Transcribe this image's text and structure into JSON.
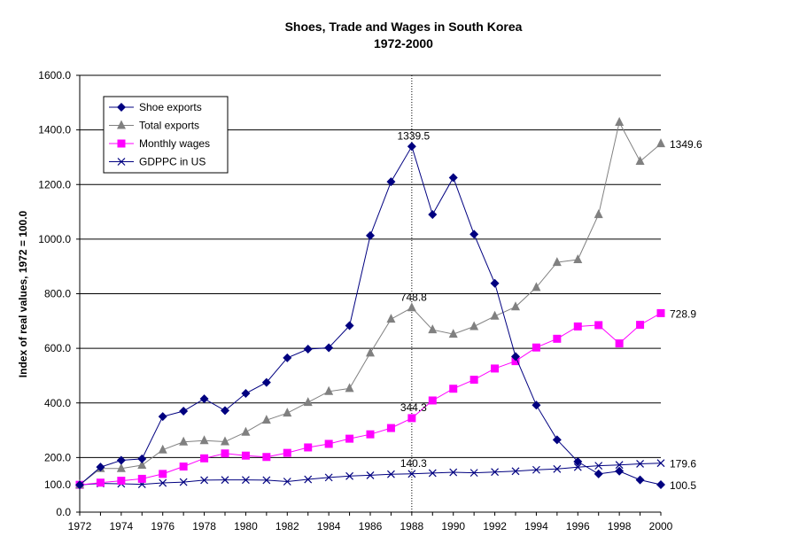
{
  "colors": {
    "shoe_exports": "#000080",
    "total_exports": "#808080",
    "monthly_wages": "#ff00ff",
    "gdppc_us": "#000080",
    "gridline": "#000000"
  },
  "chart_data": {
    "type": "line",
    "title": "Shoes, Trade and Wages in South Korea",
    "subtitle": "1972-2000",
    "ylabel": "Index of real values, 1972 = 100.0",
    "xlabel": "",
    "ylim": [
      0,
      1600
    ],
    "xlim": [
      1972,
      2000
    ],
    "y_ticks": [
      "0.0",
      "100.0",
      "200.0",
      "400.0",
      "600.0",
      "800.0",
      "1000.0",
      "1200.0",
      "1400.0",
      "1600.0"
    ],
    "x_ticks": [
      "1972",
      "1974",
      "1976",
      "1978",
      "1980",
      "1982",
      "1984",
      "1986",
      "1988",
      "1990",
      "1992",
      "1994",
      "1996",
      "1998",
      "2000"
    ],
    "grid": "horizontal",
    "legend_position": "top-left",
    "reference_line_year": 1988,
    "x": [
      1972,
      1973,
      1974,
      1975,
      1976,
      1977,
      1978,
      1979,
      1980,
      1981,
      1982,
      1983,
      1984,
      1985,
      1986,
      1987,
      1988,
      1989,
      1990,
      1991,
      1992,
      1993,
      1994,
      1995,
      1996,
      1997,
      1998,
      1999,
      2000
    ],
    "series": [
      {
        "name": "Shoe exports",
        "key": "shoe_exports",
        "marker": "diamond",
        "values": [
          100,
          165,
          190,
          195,
          350,
          370,
          415,
          372,
          435,
          475,
          565,
          597,
          602,
          683,
          1013,
          1210,
          1339.5,
          1090,
          1225,
          1018,
          838,
          570,
          392,
          265,
          185,
          140,
          150,
          118,
          100.5
        ]
      },
      {
        "name": "Total exports",
        "key": "total_exports",
        "marker": "triangle",
        "values": [
          100,
          160,
          160,
          172,
          228,
          257,
          262,
          258,
          293,
          337,
          363,
          402,
          442,
          453,
          583,
          707,
          748.8,
          668,
          652,
          680,
          718,
          752,
          823,
          915,
          925,
          1090,
          1428,
          1285,
          1349.6
        ]
      },
      {
        "name": "Monthly wages",
        "key": "monthly_wages",
        "marker": "square",
        "values": [
          100,
          108,
          115,
          122,
          140,
          167,
          197,
          215,
          207,
          202,
          217,
          237,
          250,
          269,
          285,
          308,
          344.3,
          409,
          452,
          485,
          526,
          553,
          603,
          635,
          680,
          685,
          618,
          686,
          728.9
        ]
      },
      {
        "name": "GDPPC in US",
        "key": "gdppc_us",
        "marker": "x",
        "values": [
          100,
          105,
          104,
          102,
          107,
          110,
          117,
          118,
          118,
          117,
          112,
          120,
          127,
          132,
          135,
          139,
          140.3,
          143,
          146,
          144,
          147,
          150,
          155,
          158,
          165,
          170,
          173,
          177,
          179.6
        ]
      }
    ],
    "annotations": [
      {
        "text": "1339.5",
        "x": 1988,
        "y": 1339.5,
        "series": "shoe_exports"
      },
      {
        "text": "748.8",
        "x": 1988,
        "y": 748.8,
        "series": "total_exports"
      },
      {
        "text": "344.3",
        "x": 1988,
        "y": 344.3,
        "series": "monthly_wages"
      },
      {
        "text": "140.3",
        "x": 1988,
        "y": 140.3,
        "series": "gdppc_us"
      },
      {
        "text": "1349.6",
        "x": 2000,
        "y": 1349.6,
        "series": "total_exports"
      },
      {
        "text": "728.9",
        "x": 2000,
        "y": 728.9,
        "series": "monthly_wages"
      },
      {
        "text": "179.6",
        "x": 2000,
        "y": 179.6,
        "series": "gdppc_us"
      },
      {
        "text": "100.5",
        "x": 2000,
        "y": 100.5,
        "series": "shoe_exports"
      }
    ]
  }
}
